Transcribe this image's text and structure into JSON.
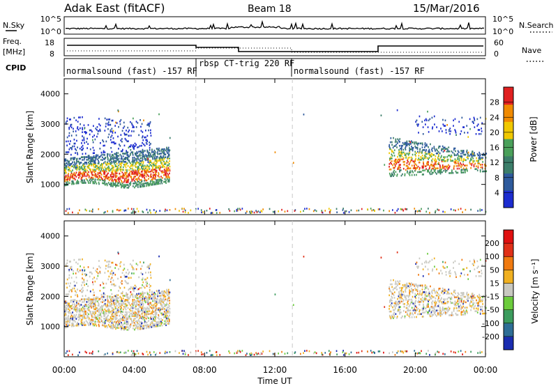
{
  "header": {
    "title": "Adak East (fitACF)",
    "beam": "Beam 18",
    "date": "15/Mar/2016"
  },
  "sky_panel": {
    "left_label": "N.Sky",
    "right_label": "N.Search",
    "left_ticks": [
      "10^5",
      "10^0"
    ],
    "right_ticks": [
      "10^5",
      "10^0"
    ]
  },
  "freq_panel": {
    "left_label_1": "Freq.",
    "left_label_2": "[MHz]",
    "left_ticks": [
      "18",
      "8"
    ],
    "right_label": "Nave",
    "right_ticks": [
      "60",
      "0"
    ]
  },
  "cpid": {
    "label": "CPID",
    "segments": [
      {
        "text": "normalsound (fast) -157 RF",
        "start_hour": 0,
        "end_hour": 7.5
      },
      {
        "text": "rbsp CT-trig 220 RF",
        "start_hour": 7.5,
        "end_hour": 13.0
      },
      {
        "text": "normalsound (fast) -157 RF",
        "start_hour": 13.0,
        "end_hour": 24
      }
    ]
  },
  "chart_data": [
    {
      "type": "heatmap",
      "name": "power",
      "ylabel": "Slant Range [km]",
      "ylim": [
        0,
        4500
      ],
      "yticks": [
        "1000",
        "2000",
        "3000",
        "4000"
      ],
      "colorbar_label": "Power [dB]",
      "colorbar_ticks": [
        "4",
        "8",
        "12",
        "16",
        "20",
        "24",
        "28"
      ],
      "colorbar_colors": [
        "#1c2cd0",
        "#2e5a9c",
        "#3c7e6a",
        "#4aa05a",
        "#f0c800",
        "#f08a00",
        "#e02020"
      ]
    },
    {
      "type": "heatmap",
      "name": "velocity",
      "ylabel": "Slant Range [km]",
      "ylim": [
        0,
        4500
      ],
      "yticks": [
        "1000",
        "2000",
        "3000",
        "4000"
      ],
      "colorbar_label": "Velocity [m s⁻¹]",
      "colorbar_ticks": [
        "200",
        "100",
        "50",
        "15",
        "-15",
        "-50",
        "-100",
        "-200"
      ],
      "colorbar_colors": [
        "#1a2cb0",
        "#2e6e96",
        "#3c9c5e",
        "#6ccc3c",
        "#c8c8c0",
        "#f0b020",
        "#f07a10",
        "#e03018",
        "#e01010"
      ]
    }
  ],
  "xaxis": {
    "label": "Time UT",
    "ticks": [
      "00:00",
      "04:00",
      "08:00",
      "12:00",
      "16:00",
      "20:00",
      "00:00"
    ]
  },
  "markers": {
    "dashed_hours": [
      7.5,
      13.0
    ]
  }
}
